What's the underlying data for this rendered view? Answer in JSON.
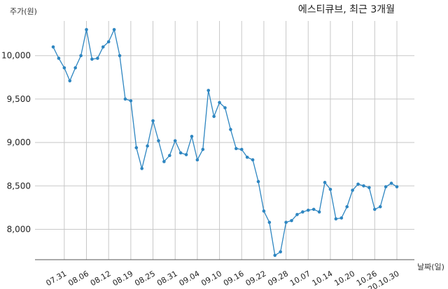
{
  "chart_data": {
    "type": "line",
    "title": "에스티큐브, 최근 3개월",
    "ylabel": "주가(원)",
    "xlabel": "날짜(일)",
    "ylim": [
      7650,
      10400
    ],
    "yticks": [
      8000,
      8500,
      9000,
      9500,
      10000
    ],
    "ytick_labels": [
      "8,000",
      "8,500",
      "9,000",
      "9,500",
      "10,000"
    ],
    "xtick_labels": [
      "07.31",
      "08.06",
      "08.12",
      "08.19",
      "08.25",
      "08.31",
      "09.04",
      "09.10",
      "09.16",
      "09.22",
      "09.28",
      "10.07",
      "10.14",
      "10.20",
      "10.26",
      "20.10.30"
    ],
    "xtick_index": [
      2,
      6,
      10,
      14,
      18,
      22,
      26,
      30,
      34,
      38,
      42,
      46,
      50,
      54,
      58,
      62
    ],
    "grid": true,
    "color": "#2e86c1",
    "series": [
      {
        "values": [
          10100,
          9970,
          9860,
          9710,
          9860,
          10000,
          10300,
          9960,
          9970,
          10100,
          10160,
          10300,
          10000,
          9500,
          9480,
          8940,
          8700,
          8960,
          9250,
          9020,
          8780,
          8850,
          9020,
          8880,
          8860,
          9070,
          8800,
          8920,
          9600,
          9300,
          9460,
          9400,
          9150,
          8930,
          8920,
          8830,
          8800,
          8550,
          8210,
          8080,
          7700,
          7740,
          8080,
          8100,
          8170,
          8200,
          8220,
          8230,
          8200,
          8540,
          8460,
          8120,
          8130,
          8260,
          8450,
          8520,
          8500,
          8480,
          8230,
          8260,
          8490,
          8530,
          8490
        ]
      }
    ]
  }
}
